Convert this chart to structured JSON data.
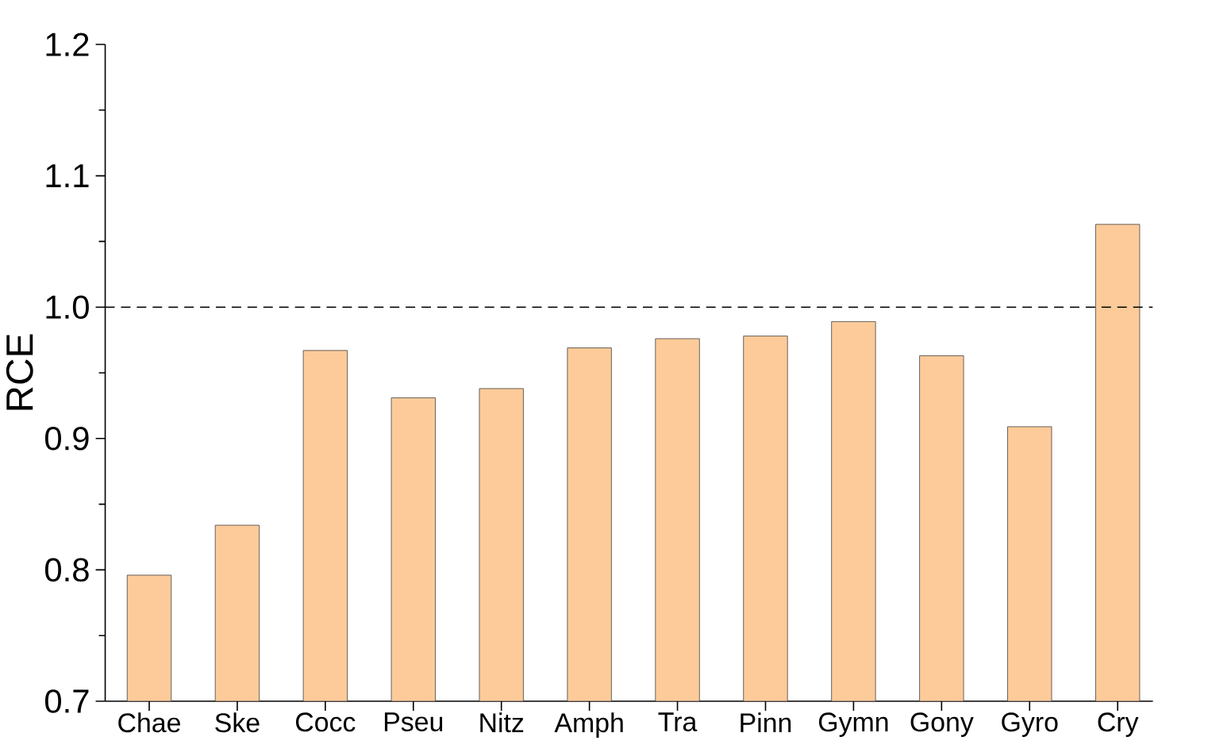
{
  "chart_data": {
    "type": "bar",
    "ylabel": "RCE",
    "categories": [
      "Chae",
      "Ske",
      "Cocc",
      "Pseu",
      "Nitz",
      "Amph",
      "Tra",
      "Pinn",
      "Gymn",
      "Gony",
      "Gyro",
      "Cry"
    ],
    "values": [
      0.796,
      0.834,
      0.967,
      0.931,
      0.938,
      0.969,
      0.976,
      0.978,
      0.989,
      0.963,
      0.909,
      1.063
    ],
    "color": "#fdcb9a",
    "ylim": [
      0.7,
      1.2
    ],
    "yticks": [
      0.7,
      0.8,
      0.9,
      {
        "value": 1.0,
        "label": "1.0"
      },
      1.1,
      1.2
    ],
    "ref_lines": [
      {
        "axis": "y",
        "value": 1.0,
        "line_style": "dashed",
        "color": "#000000"
      }
    ],
    "grid": false
  }
}
